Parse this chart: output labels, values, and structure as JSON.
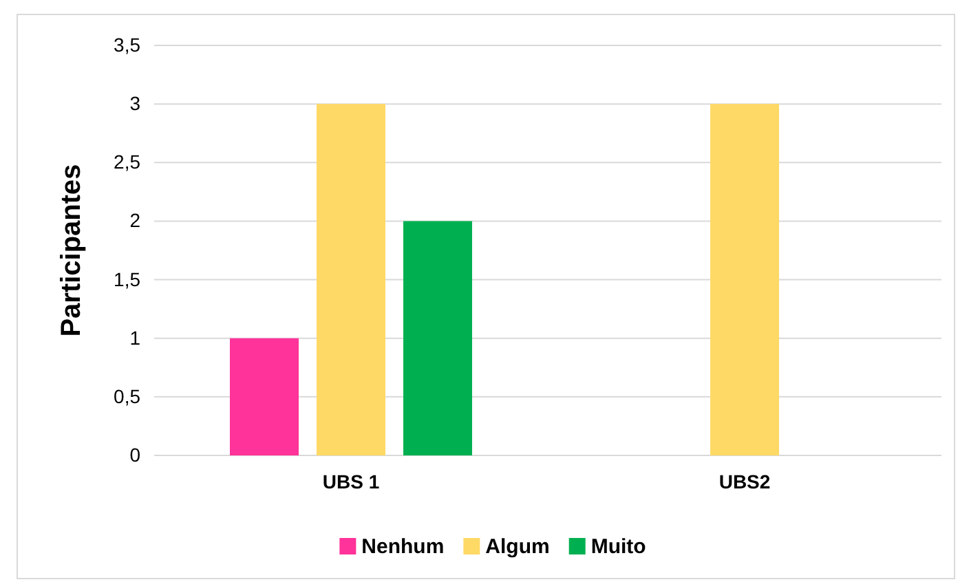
{
  "chart_data": {
    "type": "bar",
    "ylabel": "Participantes",
    "categories": [
      "UBS 1",
      "UBS2"
    ],
    "series": [
      {
        "name": "Nenhum",
        "color": "#ff3399",
        "values": [
          1,
          0
        ]
      },
      {
        "name": "Algum",
        "color": "#ffd966",
        "values": [
          3,
          3
        ]
      },
      {
        "name": "Muito",
        "color": "#00b050",
        "values": [
          2,
          0
        ]
      }
    ],
    "ylim": [
      0,
      3.5
    ],
    "yticks": [
      0,
      {
        "value": 0.5,
        "label": "0,5"
      },
      1,
      {
        "value": 1.5,
        "label": "1,5"
      },
      2,
      {
        "value": 2.5,
        "label": "2,5"
      },
      3,
      {
        "value": 3.5,
        "label": "3,5"
      }
    ],
    "grid": "y",
    "legend": "bottom"
  }
}
